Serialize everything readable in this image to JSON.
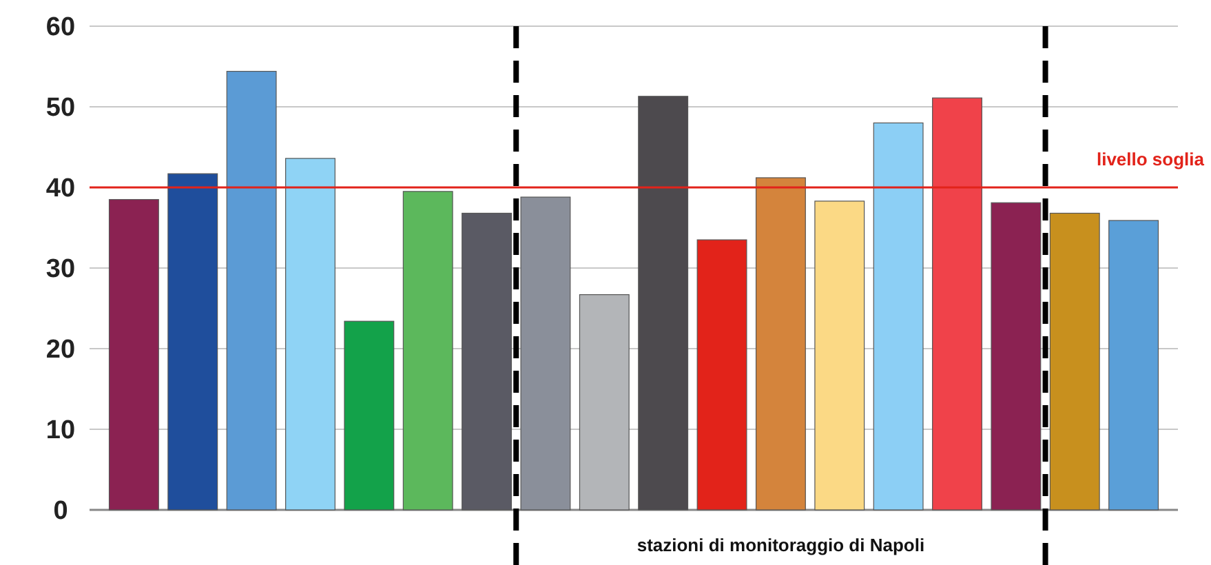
{
  "chart_data": {
    "type": "bar",
    "xlabel": "stazioni di monitoraggio di Napoli",
    "categories": [
      null,
      null,
      null,
      null,
      null,
      null,
      null,
      null,
      null,
      null,
      null,
      null,
      null,
      null,
      null,
      null,
      null,
      null
    ],
    "values": [
      38.5,
      41.7,
      54.4,
      43.6,
      23.4,
      39.5,
      36.8,
      38.8,
      26.7,
      51.3,
      33.5,
      41.2,
      38.3,
      48.0,
      51.1,
      38.1,
      36.8,
      35.9
    ],
    "colors": [
      "#8b2252",
      "#1f4e9c",
      "#5b9bd5",
      "#8fd3f5",
      "#13a24a",
      "#5cb85c",
      "#5a5a64",
      "#8a8f9a",
      "#b3b5b8",
      "#4d4a4e",
      "#e2231a",
      "#d4843c",
      "#fbd985",
      "#8ccff5",
      "#f0424a",
      "#8b2252",
      "#c8901e",
      "#5a9fd8"
    ],
    "ylim": [
      0,
      60
    ],
    "yticks": [
      0,
      10,
      20,
      30,
      40,
      50,
      60
    ],
    "grid": "y",
    "ref_lines": [
      {
        "axis": "y",
        "value": 40,
        "label": "livello soglia",
        "color": "#e2231a"
      }
    ]
  }
}
